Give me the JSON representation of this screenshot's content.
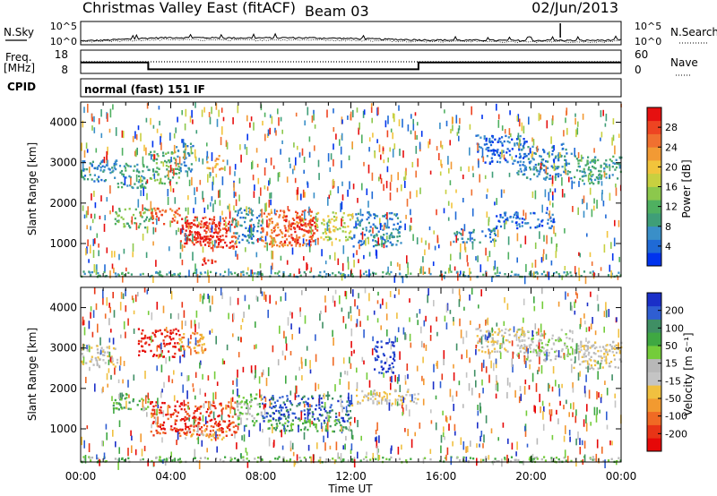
{
  "header": {
    "station": "Christmas Valley East (fitACF)",
    "beam": "Beam 03",
    "date": "02/Jun/2013"
  },
  "sky_panel": {
    "left_label": "N.Sky",
    "right_label": "N.Search",
    "y_ticks_left": [
      "10^5",
      "10^0"
    ],
    "y_ticks_right": [
      "10^5",
      "10^0"
    ]
  },
  "freq_panel": {
    "left_label_1": "Freq.",
    "left_label_2": "[MHz]",
    "right_label": "Nave",
    "y_ticks_left": [
      "18",
      "8"
    ],
    "y_ticks_right": [
      "60",
      "0"
    ]
  },
  "cpid": {
    "label": "CPID",
    "mode": "normal (fast) 151 IF"
  },
  "chart_data": [
    {
      "type": "line",
      "name": "sky-noise",
      "x_unit_hours": [
        0,
        24
      ],
      "x": [
        0,
        1,
        2,
        3,
        4,
        5,
        6,
        7,
        8,
        9,
        10,
        11,
        12,
        13,
        14,
        15,
        16,
        17,
        18,
        19,
        20,
        21,
        22,
        23,
        24
      ],
      "series": [
        {
          "name": "N.Sky",
          "values": [
            5,
            7,
            12,
            22,
            30,
            28,
            26,
            24,
            25,
            27,
            26,
            22,
            18,
            14,
            11,
            9,
            8,
            7,
            7,
            6,
            6,
            7,
            6,
            7,
            8
          ]
        },
        {
          "name": "N.Search",
          "values": [
            3,
            4,
            5,
            8,
            10,
            9,
            9,
            8,
            8,
            9,
            9,
            8,
            7,
            6,
            5,
            4,
            4,
            4,
            4,
            3,
            3,
            4,
            3,
            3,
            4
          ]
        }
      ]
    },
    {
      "type": "line",
      "name": "frequency-nave",
      "x_unit_hours": [
        0,
        24
      ],
      "series": [
        {
          "name": "Freq.",
          "points": [
            [
              0,
              14.2
            ],
            [
              3.0,
              14.2
            ],
            [
              3.0,
              10.0
            ],
            [
              15.0,
              10.0
            ],
            [
              15.0,
              14.2
            ],
            [
              24,
              14.2
            ]
          ]
        },
        {
          "name": "Nave",
          "points": [
            [
              0,
              30
            ],
            [
              24,
              30
            ]
          ]
        }
      ]
    },
    {
      "type": "heatmap",
      "name": "power",
      "xlabel": "",
      "ylabel": "Slant Range [km]",
      "xlim": [
        0,
        24
      ],
      "ylim": [
        180,
        4500
      ],
      "y_ticks": [
        1000,
        2000,
        3000,
        4000
      ],
      "colorbar": {
        "label": "Power [dB]",
        "ticks": [
          "4",
          "8",
          "12",
          "16",
          "20",
          "24",
          "28"
        ],
        "colors": [
          "#0033ee",
          "#1f6ad6",
          "#3a8fc8",
          "#3f9e78",
          "#4fb060",
          "#8cc84c",
          "#c8d040",
          "#f2c43c",
          "#f29a34",
          "#f07030",
          "#ee4422",
          "#e61010"
        ]
      },
      "regions": [
        {
          "t0": 0.0,
          "t1": 1.6,
          "r0": 2550,
          "r1": 3100,
          "level": 2
        },
        {
          "t0": 1.6,
          "t1": 3.0,
          "r0": 2400,
          "r1": 3000,
          "level": 3
        },
        {
          "t0": 3.0,
          "t1": 4.4,
          "r0": 2500,
          "r1": 3300,
          "level": 4
        },
        {
          "t0": 4.2,
          "t1": 5.0,
          "r0": 2800,
          "r1": 3500,
          "level": 2
        },
        {
          "t0": 5.5,
          "t1": 6.3,
          "r0": 2850,
          "r1": 3200,
          "level": 8
        },
        {
          "t0": 1.5,
          "t1": 3.2,
          "r0": 1400,
          "r1": 1900,
          "level": 4
        },
        {
          "t0": 3.0,
          "t1": 4.4,
          "r0": 1500,
          "r1": 1900,
          "level": 9
        },
        {
          "t0": 4.4,
          "t1": 6.9,
          "r0": 900,
          "r1": 1700,
          "level": 10
        },
        {
          "t0": 4.5,
          "t1": 6.5,
          "r0": 1050,
          "r1": 1550,
          "level": 11
        },
        {
          "t0": 6.8,
          "t1": 8.0,
          "r0": 1000,
          "r1": 1900,
          "level": 2
        },
        {
          "t0": 8.0,
          "t1": 10.4,
          "r0": 950,
          "r1": 1850,
          "level": 9
        },
        {
          "t0": 9.0,
          "t1": 10.5,
          "r0": 1050,
          "r1": 1700,
          "level": 11
        },
        {
          "t0": 10.4,
          "t1": 12.0,
          "r0": 1100,
          "r1": 1800,
          "level": 6
        },
        {
          "t0": 12.0,
          "t1": 14.2,
          "r0": 950,
          "r1": 1800,
          "level": 2
        },
        {
          "t0": 5.3,
          "t1": 6.0,
          "r0": 500,
          "r1": 700,
          "level": 10
        },
        {
          "t0": 16.5,
          "t1": 18.4,
          "r0": 1050,
          "r1": 1400,
          "level": 2
        },
        {
          "t0": 18.4,
          "t1": 21.0,
          "r0": 1400,
          "r1": 1800,
          "level": 1
        },
        {
          "t0": 19.3,
          "t1": 21.8,
          "r0": 2600,
          "r1": 3500,
          "level": 2
        },
        {
          "t0": 21.8,
          "t1": 24.0,
          "r0": 2500,
          "r1": 3200,
          "level": 3
        },
        {
          "t0": 17.5,
          "t1": 19.8,
          "r0": 3000,
          "r1": 3700,
          "level": 1
        },
        {
          "t0": 0.0,
          "t1": 24.0,
          "r0": 200,
          "r1": 330,
          "level": 3
        }
      ]
    },
    {
      "type": "heatmap",
      "name": "velocity",
      "xlabel": "Time UT",
      "ylabel": "Slant Range [km]",
      "xlim": [
        0,
        24
      ],
      "ylim": [
        180,
        4500
      ],
      "x_ticks": [
        "00:00",
        "04:00",
        "08:00",
        "12:00",
        "16:00",
        "20:00",
        "00:00"
      ],
      "y_ticks": [
        1000,
        2000,
        3000,
        4000
      ],
      "colorbar": {
        "label": "Velocity [m s⁻¹]",
        "ticks": [
          "200",
          "100",
          "50",
          "15",
          "-15",
          "-50",
          "-100",
          "-200"
        ],
        "colors": [
          "#1a2fc8",
          "#2f5ed2",
          "#3f8f64",
          "#3fa842",
          "#74cc3a",
          "#b8b8b8",
          "#c4c4c4",
          "#f0c040",
          "#f29a30",
          "#f06a24",
          "#e83416",
          "#e60808"
        ]
      },
      "regions": [
        {
          "t0": 0.0,
          "t1": 1.6,
          "r0": 2550,
          "r1": 3100,
          "level": 5
        },
        {
          "t0": 2.5,
          "t1": 4.5,
          "r0": 2800,
          "r1": 3500,
          "level": 0
        },
        {
          "t0": 4.2,
          "t1": 5.5,
          "r0": 2900,
          "r1": 3400,
          "level": 3
        },
        {
          "t0": 1.4,
          "t1": 3.0,
          "r0": 1500,
          "r1": 1900,
          "level": 8
        },
        {
          "t0": 3.0,
          "t1": 6.9,
          "r0": 850,
          "r1": 1700,
          "level": 1
        },
        {
          "t0": 4.5,
          "t1": 6.5,
          "r0": 750,
          "r1": 1000,
          "level": 4
        },
        {
          "t0": 6.9,
          "t1": 8.0,
          "r0": 1100,
          "r1": 1900,
          "level": 7
        },
        {
          "t0": 8.0,
          "t1": 12.0,
          "r0": 1200,
          "r1": 1850,
          "level": 10
        },
        {
          "t0": 8.2,
          "t1": 12.0,
          "r0": 950,
          "r1": 1250,
          "level": 8
        },
        {
          "t0": 13.0,
          "t1": 13.9,
          "r0": 2400,
          "r1": 3200,
          "level": 11
        },
        {
          "t0": 12.0,
          "t1": 15.0,
          "r0": 1600,
          "r1": 2000,
          "level": 5
        },
        {
          "t0": 19.3,
          "t1": 21.8,
          "r0": 2700,
          "r1": 3500,
          "level": 6
        },
        {
          "t0": 21.8,
          "t1": 24.0,
          "r0": 2500,
          "r1": 3200,
          "level": 5
        },
        {
          "t0": 17.5,
          "t1": 19.8,
          "r0": 2900,
          "r1": 3500,
          "level": 5
        },
        {
          "t0": 0.0,
          "t1": 24.0,
          "r0": 200,
          "r1": 330,
          "level": 7
        }
      ]
    }
  ]
}
